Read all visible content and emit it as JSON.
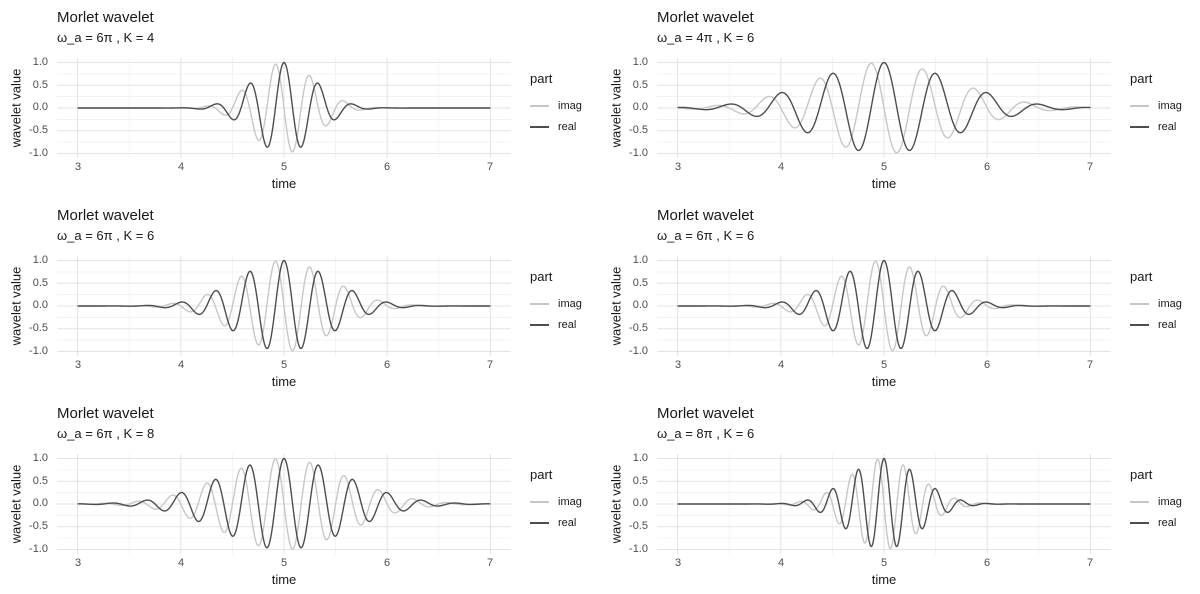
{
  "chart_data": {
    "type": "line",
    "layout": {
      "rows": 3,
      "cols": 2,
      "grid": true,
      "legend_position": "right"
    },
    "model": "Morlet wavelet: envelope = exp(-(w*(t-c))^2/(4*K^2)), w = omega_pi*PI, c = t_center; real = cos(w*(t-c))*envelope; imag = -sin(w*(t-c))*envelope",
    "t_center": 5,
    "curve_t_range": [
      3,
      7
    ],
    "x": {
      "label": "time",
      "ticks": [
        3,
        4,
        5,
        6,
        7
      ],
      "tick_labels": [
        "3",
        "4",
        "5",
        "6",
        "7"
      ],
      "minor": [
        3.5,
        4.5,
        5.5,
        6.5
      ],
      "range": [
        2.8,
        7.2
      ]
    },
    "y": {
      "label": "wavelet value",
      "ticks": [
        1.0,
        0.5,
        0.0,
        -0.5,
        -1.0
      ],
      "tick_labels": [
        "1.0",
        "0.5",
        "0.0",
        "-0.5",
        "-1.0"
      ],
      "minor": [
        0.75,
        0.25,
        -0.25,
        -0.75
      ],
      "range": [
        -1.1,
        1.1
      ]
    },
    "legend": {
      "title": "part",
      "entries": [
        {
          "label": "imag",
          "color": "#c7c7c7"
        },
        {
          "label": "real",
          "color": "#4d4d4d"
        }
      ]
    },
    "style": {
      "background": "#ffffff",
      "grid_major": "#e3e3e3",
      "grid_minor": "#f1f1f1",
      "axis_text": "#4d4d4d",
      "title_text": "#191919",
      "curve_width": 1.4
    },
    "panels": [
      {
        "title": "Morlet wavelet",
        "subtitle": "ω_a = 6π , K = 4",
        "omega_pi": 6,
        "K": 4
      },
      {
        "title": "Morlet wavelet",
        "subtitle": "ω_a = 4π , K = 6",
        "omega_pi": 4,
        "K": 6
      },
      {
        "title": "Morlet wavelet",
        "subtitle": "ω_a = 6π , K = 6",
        "omega_pi": 6,
        "K": 6
      },
      {
        "title": "Morlet wavelet",
        "subtitle": "ω_a = 6π , K = 6",
        "omega_pi": 6,
        "K": 6
      },
      {
        "title": "Morlet wavelet",
        "subtitle": "ω_a = 6π , K = 8",
        "omega_pi": 6,
        "K": 8
      },
      {
        "title": "Morlet wavelet",
        "subtitle": "ω_a = 8π , K = 6",
        "omega_pi": 8,
        "K": 6
      }
    ]
  }
}
